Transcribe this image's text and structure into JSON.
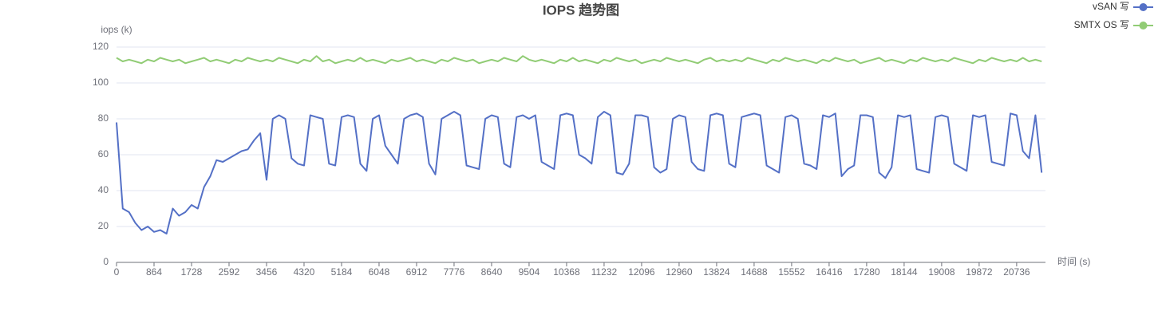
{
  "chart_data": {
    "type": "line",
    "title": "IOPS 趋势图",
    "y_axis_label": "iops (k)",
    "x_axis_label": "时间 (s)",
    "legend": "top-right",
    "grid": true,
    "xlim": [
      0,
      21400
    ],
    "ylim": [
      0,
      120
    ],
    "xticks": [
      0,
      864,
      1728,
      2592,
      3456,
      4320,
      5184,
      6048,
      6912,
      7776,
      8640,
      9504,
      10368,
      11232,
      12096,
      12960,
      13824,
      14688,
      15552,
      16416,
      17280,
      18144,
      19008,
      19872,
      20736
    ],
    "yticks": [
      0,
      20,
      40,
      60,
      80,
      100,
      120
    ],
    "x": [
      0,
      144,
      288,
      432,
      576,
      720,
      864,
      1008,
      1152,
      1296,
      1440,
      1584,
      1728,
      1872,
      2016,
      2160,
      2304,
      2448,
      2592,
      2736,
      2880,
      3024,
      3168,
      3312,
      3456,
      3600,
      3744,
      3888,
      4032,
      4176,
      4320,
      4464,
      4608,
      4752,
      4896,
      5040,
      5184,
      5328,
      5472,
      5616,
      5760,
      5904,
      6048,
      6192,
      6336,
      6480,
      6624,
      6768,
      6912,
      7056,
      7200,
      7344,
      7488,
      7632,
      7776,
      7920,
      8064,
      8208,
      8352,
      8496,
      8640,
      8784,
      8928,
      9072,
      9216,
      9360,
      9504,
      9648,
      9792,
      9936,
      10080,
      10224,
      10368,
      10512,
      10656,
      10800,
      10944,
      11088,
      11232,
      11376,
      11520,
      11664,
      11808,
      11952,
      12096,
      12240,
      12384,
      12528,
      12672,
      12816,
      12960,
      13104,
      13248,
      13392,
      13536,
      13680,
      13824,
      13968,
      14112,
      14256,
      14400,
      14544,
      14688,
      14832,
      14976,
      15120,
      15264,
      15408,
      15552,
      15696,
      15840,
      15984,
      16128,
      16272,
      16416,
      16560,
      16704,
      16848,
      16992,
      17136,
      17280,
      17424,
      17568,
      17712,
      17856,
      18000,
      18144,
      18288,
      18432,
      18576,
      18720,
      18864,
      19008,
      19152,
      19296,
      19440,
      19584,
      19728,
      19872,
      20016,
      20160,
      20304,
      20448,
      20592,
      20736,
      20880,
      21024,
      21168,
      21312
    ],
    "series": [
      {
        "name": "vSAN 写",
        "color": "#5470c6",
        "values": [
          78,
          30,
          28,
          22,
          18,
          20,
          17,
          18,
          16,
          30,
          26,
          28,
          32,
          30,
          42,
          48,
          57,
          56,
          58,
          60,
          62,
          63,
          68,
          72,
          46,
          80,
          82,
          80,
          58,
          55,
          54,
          82,
          81,
          80,
          55,
          54,
          81,
          82,
          81,
          55,
          51,
          80,
          82,
          65,
          60,
          55,
          80,
          82,
          83,
          81,
          55,
          49,
          80,
          82,
          84,
          82,
          54,
          53,
          52,
          80,
          82,
          81,
          55,
          53,
          81,
          82,
          80,
          82,
          56,
          54,
          52,
          82,
          83,
          82,
          60,
          58,
          55,
          81,
          84,
          82,
          50,
          49,
          55,
          82,
          82,
          81,
          53,
          50,
          52,
          80,
          82,
          81,
          56,
          52,
          51,
          82,
          83,
          82,
          55,
          53,
          81,
          82,
          83,
          82,
          54,
          52,
          50,
          81,
          82,
          80,
          55,
          54,
          52,
          82,
          81,
          83,
          48,
          52,
          54,
          82,
          82,
          81,
          50,
          47,
          53,
          82,
          81,
          82,
          52,
          51,
          50,
          81,
          82,
          81,
          55,
          53,
          51,
          82,
          81,
          82,
          56,
          55,
          54,
          83,
          82,
          62,
          58,
          82,
          50
        ]
      },
      {
        "name": "SMTX OS 写",
        "color": "#91cc75",
        "values": [
          114,
          112,
          113,
          112,
          111,
          113,
          112,
          114,
          113,
          112,
          113,
          111,
          112,
          113,
          114,
          112,
          113,
          112,
          111,
          113,
          112,
          114,
          113,
          112,
          113,
          112,
          114,
          113,
          112,
          111,
          113,
          112,
          115,
          112,
          113,
          111,
          112,
          113,
          112,
          114,
          112,
          113,
          112,
          111,
          113,
          112,
          113,
          114,
          112,
          113,
          112,
          111,
          113,
          112,
          114,
          113,
          112,
          113,
          111,
          112,
          113,
          112,
          114,
          113,
          112,
          115,
          113,
          112,
          113,
          112,
          111,
          113,
          112,
          114,
          112,
          113,
          112,
          111,
          113,
          112,
          114,
          113,
          112,
          113,
          111,
          112,
          113,
          112,
          114,
          113,
          112,
          113,
          112,
          111,
          113,
          114,
          112,
          113,
          112,
          113,
          112,
          114,
          113,
          112,
          111,
          113,
          112,
          114,
          113,
          112,
          113,
          112,
          111,
          113,
          112,
          114,
          113,
          112,
          113,
          111,
          112,
          113,
          114,
          112,
          113,
          112,
          111,
          113,
          112,
          114,
          113,
          112,
          113,
          112,
          114,
          113,
          112,
          111,
          113,
          112,
          114,
          113,
          112,
          113,
          112,
          114,
          112,
          113,
          112
        ]
      }
    ]
  }
}
